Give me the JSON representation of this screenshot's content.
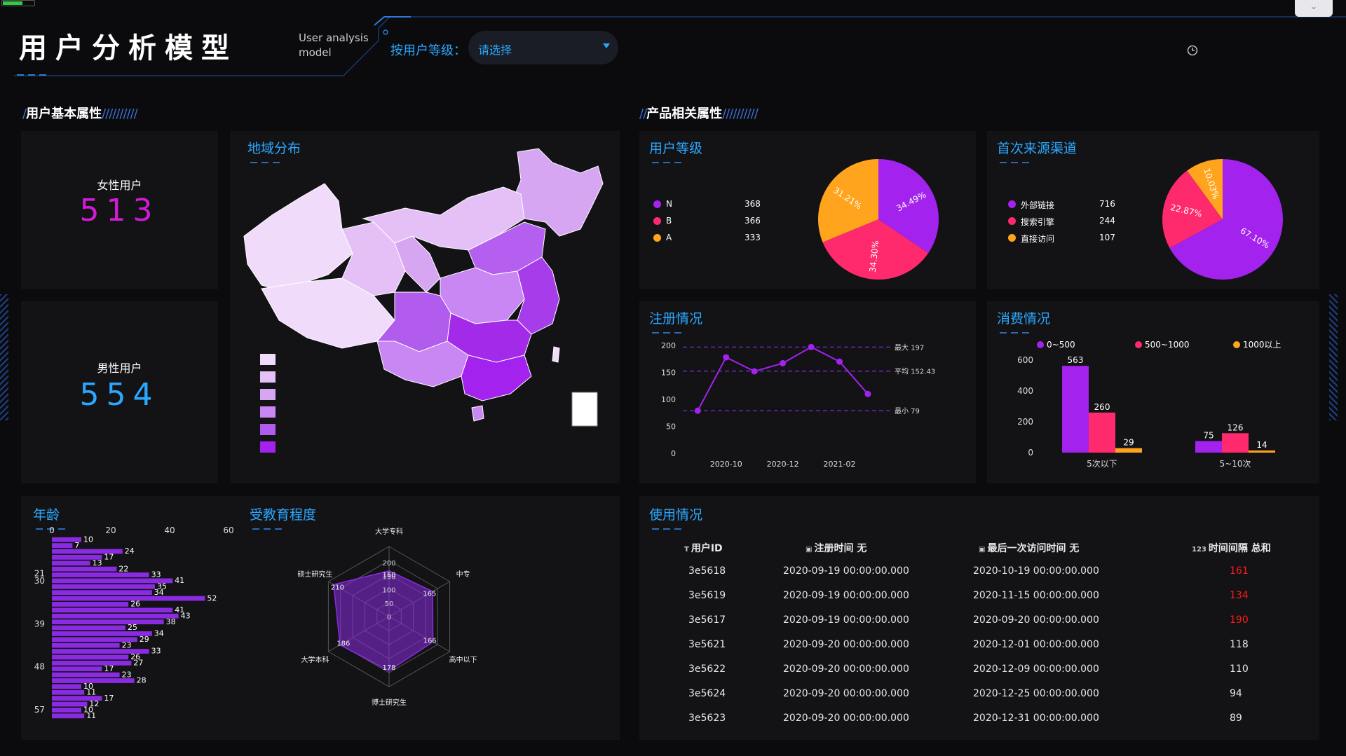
{
  "header": {
    "title": "用户分析模型",
    "subtitle_line1": "User analysis",
    "subtitle_line2": "model",
    "filter_label": "按用户等级：",
    "filter_placeholder": "请选择",
    "top_right_button": "⌄"
  },
  "sections": {
    "user_basic": "用户基本属性",
    "product": "产品相关属性"
  },
  "female": {
    "label": "女性用户",
    "value": "513"
  },
  "male": {
    "label": "男性用户",
    "value": "554"
  },
  "panels": {
    "region": "地域分布",
    "user_level": "用户等级",
    "first_source": "首次来源渠道",
    "registration": "注册情况",
    "consumption": "消费情况",
    "age": "年龄",
    "education": "受教育程度",
    "usage": "使用情况"
  },
  "user_level": {
    "legend": [
      {
        "name": "N",
        "value": "368",
        "color": "#a322ee"
      },
      {
        "name": "B",
        "value": "366",
        "color": "#ff2a6d"
      },
      {
        "name": "A",
        "value": "333",
        "color": "#ffa41c"
      }
    ],
    "pie": [
      {
        "value": 34.49,
        "label": "34.49%",
        "color": "#a322ee"
      },
      {
        "value": 34.3,
        "label": "34.30%",
        "color": "#ff2a6d"
      },
      {
        "value": 31.21,
        "label": "31.21%",
        "color": "#ffa41c"
      }
    ]
  },
  "first_source": {
    "legend": [
      {
        "name": "外部链接",
        "value": "716",
        "color": "#a322ee"
      },
      {
        "name": "搜索引擎",
        "value": "244",
        "color": "#ff2a6d"
      },
      {
        "name": "直接访问",
        "value": "107",
        "color": "#ffa41c"
      }
    ],
    "pie": [
      {
        "value": 67.1,
        "label": "67.10%",
        "color": "#a322ee"
      },
      {
        "value": 22.87,
        "label": "22.87%",
        "color": "#ff2a6d"
      },
      {
        "value": 10.03,
        "label": "10.03%",
        "color": "#ffa41c"
      }
    ]
  },
  "registration": {
    "y_ticks": [
      "200",
      "150",
      "100",
      "50",
      "0"
    ],
    "x_ticks": [
      "2020-10",
      "2020-12",
      "2021-02"
    ],
    "values": [
      79,
      178,
      152,
      167,
      197,
      170,
      110
    ],
    "max_label": "最大 197",
    "avg_label": "平均 152.43",
    "min_label": "最小 79",
    "max": 197,
    "avg": 152.43,
    "min": 79,
    "ylim": [
      0,
      200
    ],
    "color": "#a322ee"
  },
  "consumption": {
    "legend": [
      {
        "name": "0~500",
        "color": "#a322ee"
      },
      {
        "name": "500~1000",
        "color": "#ff2a6d"
      },
      {
        "name": "1000以上",
        "color": "#ffa41c"
      }
    ],
    "y_ticks": [
      "600",
      "400",
      "200",
      "0"
    ],
    "categories": [
      "5次以下",
      "5~10次"
    ],
    "series": [
      [
        563,
        260,
        29
      ],
      [
        75,
        126,
        14
      ]
    ],
    "ylim": [
      0,
      600
    ]
  },
  "age": {
    "x_ticks": [
      "0",
      "20",
      "40",
      "60"
    ],
    "y_ticks": [
      "21",
      "30",
      "39",
      "48",
      "57"
    ],
    "values": [
      10,
      7,
      24,
      17,
      13,
      22,
      33,
      41,
      35,
      34,
      52,
      26,
      41,
      43,
      38,
      25,
      34,
      29,
      23,
      33,
      26,
      27,
      17,
      23,
      28,
      10,
      11,
      17,
      12,
      10,
      11
    ],
    "xlim": [
      0,
      60
    ],
    "color": "#8a2be2"
  },
  "education": {
    "axes": [
      "大学专科",
      "中专",
      "高中以下",
      "博士研究生",
      "大学本科",
      "硕士研究生"
    ],
    "values": [
      150,
      165,
      166,
      178,
      186,
      210
    ],
    "value_labels": [
      "150",
      "165",
      "166",
      "178",
      "186",
      "210"
    ],
    "ring_labels": [
      "200",
      "150",
      "100",
      "50",
      "0"
    ],
    "max": 230
  },
  "usage": {
    "headers": [
      "用户ID",
      "注册时间 无",
      "最后一次访问时间 无",
      "时间间隔 总和"
    ],
    "header_icons": [
      "T",
      "▣",
      "▣",
      "123"
    ],
    "rows": [
      [
        "3e5618",
        "2020-09-19 00:00:00.000",
        "2020-10-19 00:00:00.000",
        "161",
        "red"
      ],
      [
        "3e5619",
        "2020-09-19 00:00:00.000",
        "2020-11-15 00:00:00.000",
        "134",
        "red"
      ],
      [
        "3e5617",
        "2020-09-19 00:00:00.000",
        "2020-09-20 00:00:00.000",
        "190",
        "red"
      ],
      [
        "3e5621",
        "2020-09-20 00:00:00.000",
        "2020-12-01 00:00:00.000",
        "118",
        ""
      ],
      [
        "3e5622",
        "2020-09-20 00:00:00.000",
        "2020-12-09 00:00:00.000",
        "110",
        ""
      ],
      [
        "3e5624",
        "2020-09-20 00:00:00.000",
        "2020-12-25 00:00:00.000",
        "94",
        ""
      ],
      [
        "3e5623",
        "2020-09-20 00:00:00.000",
        "2020-12-31 00:00:00.000",
        "89",
        ""
      ]
    ]
  }
}
